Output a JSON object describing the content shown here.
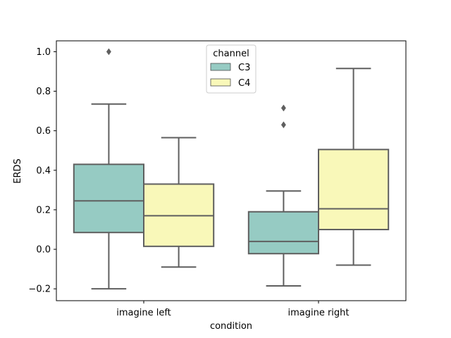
{
  "chart_data": {
    "type": "box",
    "xlabel": "condition",
    "ylabel": "ERDS",
    "ylim": [
      -0.26,
      1.055
    ],
    "yticks": [
      -0.2,
      0.0,
      0.2,
      0.4,
      0.6,
      0.8,
      1.0
    ],
    "ytick_labels": [
      "−0.2",
      "0.0",
      "0.2",
      "0.4",
      "0.6",
      "0.8",
      "1.0"
    ],
    "categories": [
      "imagine left",
      "imagine right"
    ],
    "legend": {
      "title": "channel",
      "placement": "top-center"
    },
    "series": [
      {
        "name": "C3",
        "color": "#96cbc3",
        "boxes": [
          {
            "whisker_low": -0.2,
            "q1": 0.085,
            "median": 0.245,
            "q3": 0.43,
            "whisker_high": 0.735,
            "outliers": [
              1.0
            ]
          },
          {
            "whisker_low": -0.185,
            "q1": -0.022,
            "median": 0.04,
            "q3": 0.19,
            "whisker_high": 0.295,
            "outliers": [
              0.63,
              0.715
            ]
          }
        ]
      },
      {
        "name": "C4",
        "color": "#f9f8b9",
        "boxes": [
          {
            "whisker_low": -0.09,
            "q1": 0.015,
            "median": 0.17,
            "q3": 0.33,
            "whisker_high": 0.565,
            "outliers": []
          },
          {
            "whisker_low": -0.08,
            "q1": 0.1,
            "median": 0.205,
            "q3": 0.505,
            "whisker_high": 0.915,
            "outliers": []
          }
        ]
      }
    ]
  }
}
